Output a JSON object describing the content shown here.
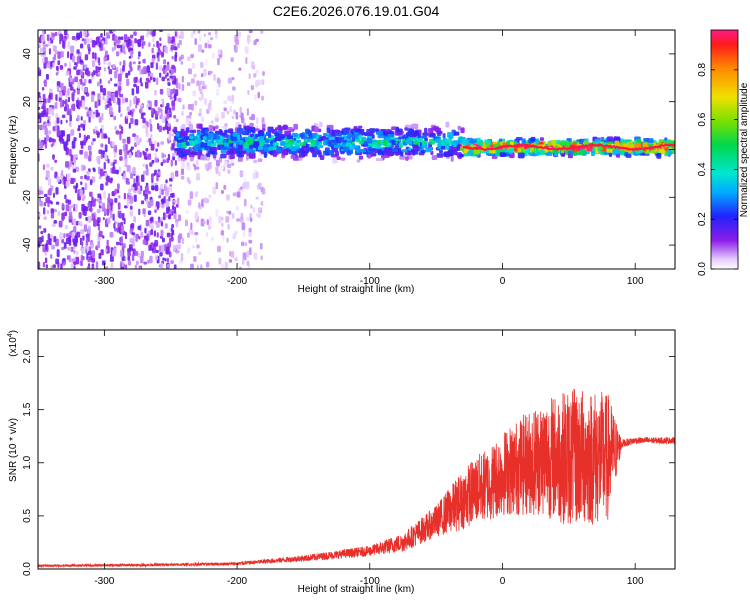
{
  "title": "C2E6.2026.076.19.01.G04",
  "chart_data": [
    {
      "type": "heatmap",
      "xlabel": "Height of straight line (km)",
      "ylabel": "Frequency (Hz)",
      "xlim": [
        -350,
        130
      ],
      "ylim": [
        -50,
        50
      ],
      "xticks": [
        -300,
        -200,
        -100,
        0,
        100
      ],
      "yticks": [
        -40,
        -20,
        0,
        20,
        40
      ],
      "xtick_labels": [
        "-300",
        "-200",
        "-100",
        "0",
        "100"
      ],
      "ytick_labels": [
        "-40",
        "-20",
        "0",
        "20",
        "40"
      ],
      "colorbar": {
        "label": "Normalized spectral amplitude",
        "range": [
          0,
          0.96
        ],
        "ticks": [
          0.0,
          0.2,
          0.4,
          0.6,
          0.8
        ],
        "tick_labels": [
          "0.0",
          "0.2",
          "0.4",
          "0.6",
          "0.8"
        ]
      },
      "regions": [
        {
          "x": [
            -350,
            -245
          ],
          "freq_spread": 50,
          "amplitude": 0.12,
          "description": "broadband noise"
        },
        {
          "x": [
            -245,
            -180
          ],
          "freq_spread": 50,
          "amplitude": 0.06,
          "description": "faint noise"
        },
        {
          "x": [
            -245,
            -30
          ],
          "freq_center": 3,
          "freq_spread": 8,
          "amplitude": 0.4,
          "description": "signal band"
        },
        {
          "x": [
            -30,
            130
          ],
          "freq_center": 1,
          "freq_spread": 4,
          "amplitude": 0.9,
          "description": "strong carrier"
        }
      ]
    },
    {
      "type": "line",
      "xlabel": "Height of straight line (km)",
      "ylabel": "SNR (10 * v/v)",
      "y_scale_label": "(x10",
      "y_scale_exponent": "4",
      "xlim": [
        -350,
        130
      ],
      "ylim": [
        0,
        22500
      ],
      "xticks": [
        -300,
        -200,
        -100,
        0,
        100
      ],
      "yticks": [
        0,
        5000,
        10000,
        15000,
        20000
      ],
      "xtick_labels": [
        "-300",
        "-200",
        "-100",
        "0",
        "100"
      ],
      "ytick_labels": [
        "0.0",
        "0.5",
        "1.0",
        "1.5",
        "2.0"
      ],
      "series": [
        {
          "name": "SNR",
          "color": "#e8302b",
          "x": [
            -350,
            -300,
            -250,
            -200,
            -150,
            -100,
            -75,
            -50,
            -40,
            -30,
            -20,
            -10,
            0,
            10,
            20,
            30,
            40,
            50,
            60,
            70,
            80,
            90,
            100,
            110,
            120,
            130
          ],
          "y": [
            300,
            350,
            400,
            500,
            1000,
            1700,
            2500,
            4500,
            5500,
            6500,
            7500,
            8000,
            9000,
            9500,
            10000,
            10500,
            10500,
            10500,
            10500,
            10500,
            10500,
            11800,
            12100,
            12100,
            12100,
            12100
          ],
          "noise_amplitude": [
            100,
            120,
            130,
            150,
            300,
            500,
            900,
            1500,
            2200,
            2800,
            3200,
            3500,
            4000,
            4500,
            5000,
            5500,
            6000,
            6500,
            6500,
            6500,
            6000,
            400,
            300,
            300,
            300,
            300
          ]
        }
      ]
    }
  ]
}
